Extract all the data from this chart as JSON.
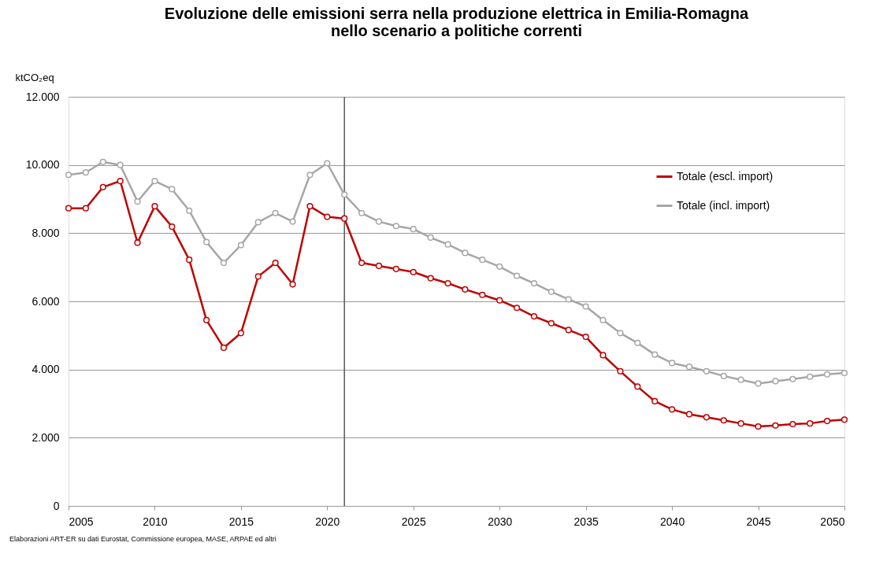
{
  "chart_data": {
    "type": "line",
    "title": "Evoluzione delle emissioni serra nella produzione elettrica in Emilia-Romagna\nnello scenario a politiche correnti",
    "ylabel": "ktCO₂eq",
    "x": [
      2005,
      2006,
      2007,
      2008,
      2009,
      2010,
      2011,
      2012,
      2013,
      2014,
      2015,
      2016,
      2017,
      2018,
      2019,
      2020,
      2021,
      2022,
      2023,
      2024,
      2025,
      2026,
      2027,
      2028,
      2029,
      2030,
      2031,
      2032,
      2033,
      2034,
      2035,
      2036,
      2037,
      2038,
      2039,
      2040,
      2041,
      2042,
      2043,
      2044,
      2045,
      2046,
      2047,
      2048,
      2049,
      2050
    ],
    "series": [
      {
        "name": "Totale (escl. import)",
        "color": "#c00000",
        "values": [
          8730,
          8730,
          9350,
          9530,
          7720,
          8790,
          8190,
          7220,
          5450,
          4640,
          5070,
          6730,
          7130,
          6500,
          8790,
          8480,
          8430,
          7130,
          7040,
          6950,
          6860,
          6680,
          6530,
          6350,
          6190,
          6030,
          5810,
          5560,
          5360,
          5160,
          4960,
          4420,
          3950,
          3500,
          3070,
          2830,
          2690,
          2600,
          2510,
          2420,
          2330,
          2360,
          2400,
          2420,
          2490,
          2530
        ]
      },
      {
        "name": "Totale (incl. import)",
        "color": "#a6a6a6",
        "values": [
          9710,
          9780,
          10090,
          10000,
          8930,
          9530,
          9290,
          8660,
          7740,
          7130,
          7650,
          8320,
          8590,
          8340,
          9710,
          10050,
          9130,
          8590,
          8340,
          8210,
          8120,
          7870,
          7670,
          7420,
          7220,
          7020,
          6750,
          6530,
          6280,
          6060,
          5850,
          5450,
          5070,
          4780,
          4440,
          4190,
          4080,
          3950,
          3810,
          3700,
          3590,
          3660,
          3720,
          3790,
          3860,
          3900
        ]
      }
    ],
    "xlim": [
      2005,
      2050
    ],
    "xticks": [
      2005,
      2010,
      2015,
      2020,
      2025,
      2030,
      2035,
      2040,
      2045,
      2050
    ],
    "ylim": [
      0,
      12000
    ],
    "yticks": [
      {
        "value": 0,
        "label": "0"
      },
      {
        "value": 2000,
        "label": "2.000"
      },
      {
        "value": 4000,
        "label": "4.000"
      },
      {
        "value": 6000,
        "label": "6.000"
      },
      {
        "value": 8000,
        "label": "8.000"
      },
      {
        "value": 10000,
        "label": "10.000"
      },
      {
        "value": 12000,
        "label": "12.000"
      }
    ],
    "ref_lines": [
      {
        "axis": "x",
        "value": 2021,
        "color": "#595959"
      }
    ],
    "grid": "y",
    "legend": "top right",
    "marker": "circle",
    "line_style": "solid",
    "annotations": [
      "Elaborazioni ART-ER su dati Eurostat, Commissione europea, MASE, ARPAE ed altri"
    ]
  }
}
